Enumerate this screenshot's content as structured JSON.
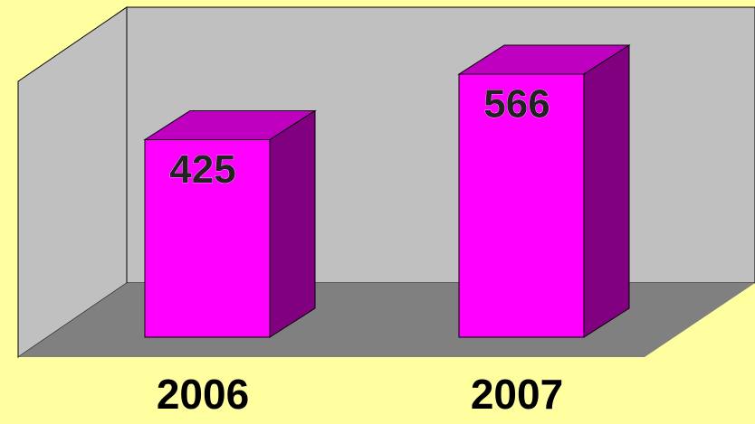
{
  "chart_data": {
    "type": "bar",
    "categories": [
      "2006",
      "2007"
    ],
    "values": [
      425,
      566
    ],
    "color": "#ff00ff"
  }
}
